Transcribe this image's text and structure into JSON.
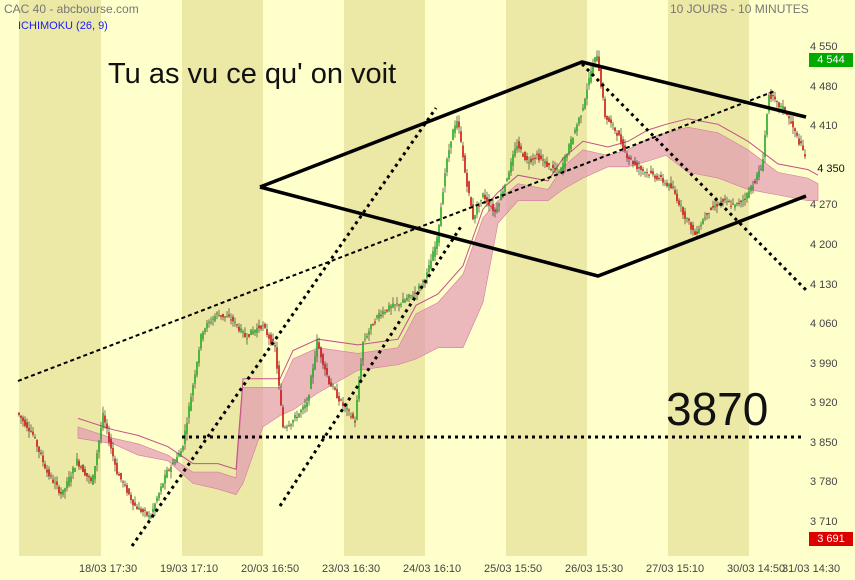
{
  "header": {
    "symbol": "CAC 40 - abcbourse.com",
    "period": "10 JOURS - 10 MINUTES"
  },
  "indicator": {
    "label": "ICHIMOKU (26, 9)"
  },
  "annotations": {
    "note": "Tu as vu ce qu' on voit",
    "level_label": "3870"
  },
  "colors": {
    "background": "#ffffcc",
    "band": "#ece8a6",
    "up": "#22aa22",
    "down": "#cc1111",
    "cloud": "#e39ab4",
    "tag_high": "#00aa00",
    "tag_low": "#dd0000"
  },
  "chart_data": {
    "type": "candlestick",
    "yticks": [
      "4 550",
      "4 480",
      "4 410",
      "4 350",
      "4 270",
      "4 200",
      "4 130",
      "4 060",
      "3 990",
      "3 920",
      "3 850",
      "3 780",
      "3 710"
    ],
    "xticks": [
      "18/03 17:30",
      "19/03 17:10",
      "20/03 16:50",
      "23/03 16:30",
      "24/03 16:10",
      "25/03 15:50",
      "26/03 15:30",
      "27/03 15:10",
      "30/03 14:50",
      "31/03 14:30"
    ],
    "ylim": [
      3691,
      4560
    ],
    "high_label": "4 544",
    "low_label": "3 691",
    "current_label": "4 350",
    "support_level": 3870,
    "price_path": [
      [
        0,
        3905
      ],
      [
        15,
        3870
      ],
      [
        30,
        3800
      ],
      [
        45,
        3760
      ],
      [
        60,
        3820
      ],
      [
        75,
        3780
      ],
      [
        86,
        3900
      ],
      [
        100,
        3800
      ],
      [
        118,
        3740
      ],
      [
        133,
        3720
      ],
      [
        150,
        3800
      ],
      [
        165,
        3840
      ],
      [
        185,
        4050
      ],
      [
        200,
        4080
      ],
      [
        215,
        4070
      ],
      [
        228,
        4040
      ],
      [
        245,
        4060
      ],
      [
        258,
        4020
      ],
      [
        266,
        3880
      ],
      [
        275,
        3890
      ],
      [
        290,
        3920
      ],
      [
        300,
        4030
      ],
      [
        312,
        3960
      ],
      [
        325,
        3920
      ],
      [
        338,
        3890
      ],
      [
        346,
        4030
      ],
      [
        355,
        4060
      ],
      [
        362,
        4080
      ],
      [
        372,
        4090
      ],
      [
        385,
        4100
      ],
      [
        400,
        4120
      ],
      [
        410,
        4150
      ],
      [
        420,
        4210
      ],
      [
        428,
        4330
      ],
      [
        435,
        4400
      ],
      [
        441,
        4420
      ],
      [
        448,
        4330
      ],
      [
        456,
        4250
      ],
      [
        466,
        4290
      ],
      [
        478,
        4260
      ],
      [
        488,
        4310
      ],
      [
        500,
        4380
      ],
      [
        510,
        4350
      ],
      [
        520,
        4360
      ],
      [
        532,
        4340
      ],
      [
        543,
        4330
      ],
      [
        555,
        4390
      ],
      [
        565,
        4440
      ],
      [
        574,
        4510
      ],
      [
        580,
        4540
      ],
      [
        588,
        4430
      ],
      [
        600,
        4400
      ],
      [
        610,
        4360
      ],
      [
        620,
        4340
      ],
      [
        630,
        4330
      ],
      [
        642,
        4320
      ],
      [
        656,
        4300
      ],
      [
        666,
        4260
      ],
      [
        678,
        4220
      ],
      [
        690,
        4260
      ],
      [
        705,
        4280
      ],
      [
        718,
        4270
      ],
      [
        730,
        4290
      ],
      [
        745,
        4340
      ],
      [
        752,
        4470
      ],
      [
        760,
        4450
      ],
      [
        768,
        4440
      ],
      [
        778,
        4400
      ],
      [
        788,
        4360
      ],
      [
        796,
        4320
      ],
      [
        803,
        4350
      ]
    ],
    "cloud_upper": [
      [
        60,
        3880
      ],
      [
        95,
        3860
      ],
      [
        120,
        3850
      ],
      [
        150,
        3830
      ],
      [
        175,
        3800
      ],
      [
        200,
        3800
      ],
      [
        218,
        3790
      ],
      [
        225,
        3950
      ],
      [
        245,
        3950
      ],
      [
        262,
        3950
      ],
      [
        275,
        4000
      ],
      [
        300,
        4020
      ],
      [
        340,
        4010
      ],
      [
        380,
        4020
      ],
      [
        398,
        4080
      ],
      [
        420,
        4100
      ],
      [
        445,
        4150
      ],
      [
        465,
        4250
      ],
      [
        480,
        4280
      ],
      [
        500,
        4310
      ],
      [
        530,
        4300
      ],
      [
        545,
        4340
      ],
      [
        565,
        4370
      ],
      [
        590,
        4360
      ],
      [
        610,
        4370
      ],
      [
        630,
        4390
      ],
      [
        648,
        4400
      ],
      [
        670,
        4410
      ],
      [
        700,
        4400
      ],
      [
        730,
        4370
      ],
      [
        760,
        4330
      ],
      [
        790,
        4320
      ],
      [
        800,
        4310
      ]
    ],
    "cloud_lower": [
      [
        60,
        3860
      ],
      [
        95,
        3850
      ],
      [
        120,
        3830
      ],
      [
        150,
        3820
      ],
      [
        175,
        3780
      ],
      [
        200,
        3770
      ],
      [
        218,
        3760
      ],
      [
        225,
        3780
      ],
      [
        245,
        3880
      ],
      [
        262,
        3900
      ],
      [
        275,
        3910
      ],
      [
        300,
        3940
      ],
      [
        340,
        3980
      ],
      [
        380,
        3990
      ],
      [
        398,
        4000
      ],
      [
        420,
        4020
      ],
      [
        445,
        4020
      ],
      [
        465,
        4100
      ],
      [
        480,
        4240
      ],
      [
        500,
        4280
      ],
      [
        530,
        4280
      ],
      [
        545,
        4300
      ],
      [
        565,
        4320
      ],
      [
        590,
        4340
      ],
      [
        610,
        4340
      ],
      [
        630,
        4350
      ],
      [
        648,
        4360
      ],
      [
        670,
        4330
      ],
      [
        700,
        4320
      ],
      [
        730,
        4300
      ],
      [
        760,
        4290
      ],
      [
        790,
        4280
      ],
      [
        800,
        4280
      ]
    ]
  }
}
